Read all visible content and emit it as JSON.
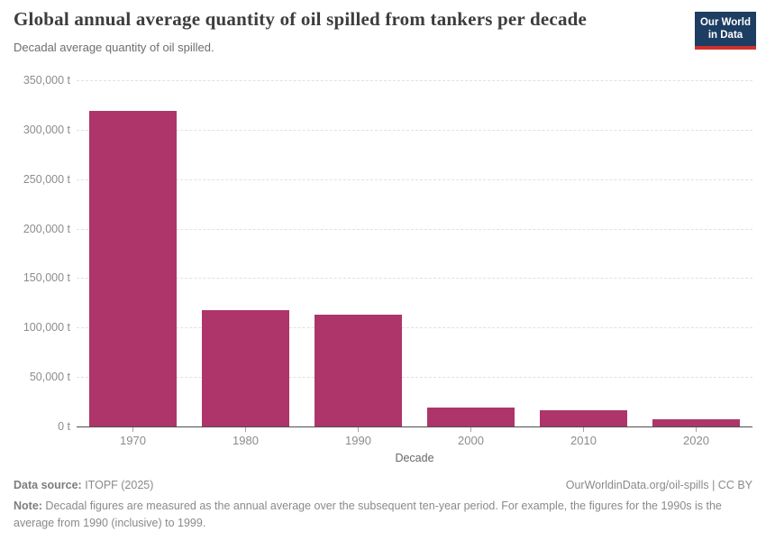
{
  "header": {
    "title": "Global annual average quantity of oil spilled from tankers per decade",
    "subtitle": "Decadal average quantity of oil spilled.",
    "logo": {
      "line1": "Our World",
      "line2": "in Data",
      "bg_color": "#1d3d63",
      "stripe_color": "#d2302c"
    }
  },
  "chart_data": {
    "type": "bar",
    "title": "Global annual average quantity of oil spilled from tankers per decade",
    "subtitle": "Decadal average quantity of oil spilled.",
    "categories": [
      "1970",
      "1980",
      "1990",
      "2000",
      "2010",
      "2020"
    ],
    "values": [
      319000,
      117800,
      113400,
      19600,
      16400,
      7700
    ],
    "xlabel": "Decade",
    "ylabel": "",
    "ylim": [
      0,
      350000
    ],
    "ytick_step": 50000,
    "ytick_labels": [
      "0 t",
      "50,000 t",
      "100,000 t",
      "150,000 t",
      "200,000 t",
      "250,000 t",
      "300,000 t",
      "350,000 t"
    ],
    "bar_color": "#ad3569",
    "grid": "horizontal-dashed",
    "legend": "none"
  },
  "footer": {
    "data_source_label": "Data source:",
    "data_source_value": " ITOPF (2025)",
    "citation": "OurWorldinData.org/oil-spills | CC BY",
    "note_label": "Note:",
    "note_text": " Decadal figures are measured as the annual average over the subsequent ten-year period. For example, the figures for the 1990s is the average from 1990 (inclusive) to 1999."
  }
}
